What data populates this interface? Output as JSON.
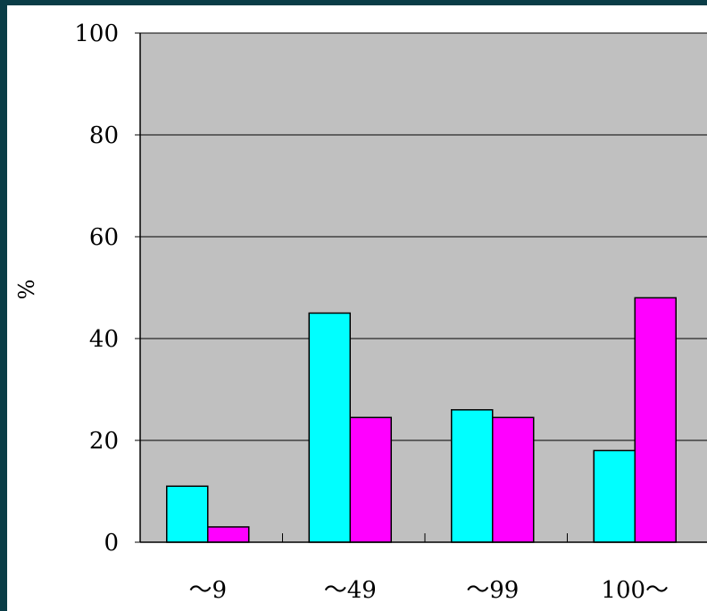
{
  "chart_data": {
    "type": "bar",
    "title": "",
    "xlabel": "",
    "ylabel": "%",
    "ylim": [
      0,
      100
    ],
    "yticks": [
      "0",
      "20",
      "40",
      "60",
      "80",
      "100"
    ],
    "categories": [
      "～9",
      "～49",
      "～99",
      "100～"
    ],
    "series": [
      {
        "values": [
          11,
          45,
          26,
          18
        ],
        "color": "#00ffff"
      },
      {
        "values": [
          3,
          24.5,
          24.5,
          48
        ],
        "color": "#ff00ff"
      }
    ],
    "grid": true,
    "plot_background": "#c0c0c0"
  }
}
